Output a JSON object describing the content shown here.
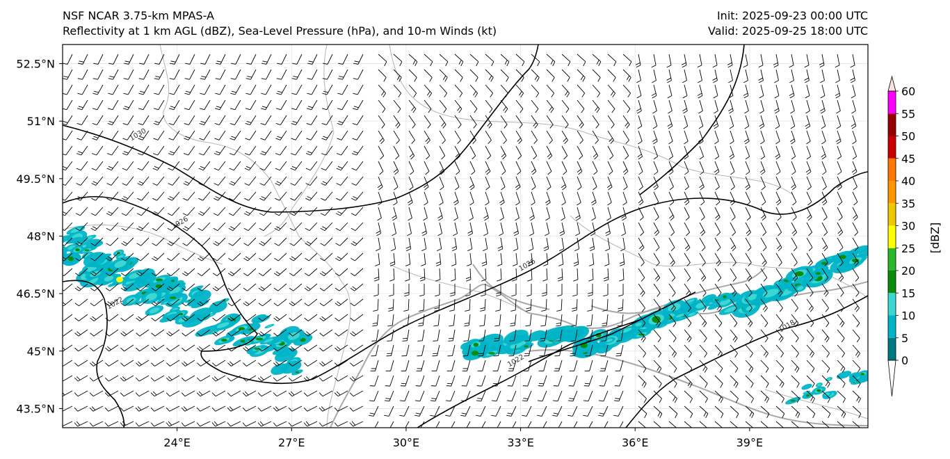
{
  "header": {
    "model": "NSF NCAR 3.75-km MPAS-A",
    "fields": "Reflectivity at 1 km AGL (dBZ), Sea-Level Pressure (hPa), and 10-m Winds (kt)",
    "init": "Init: 2025-09-23 00:00 UTC",
    "valid": "Valid: 2025-09-25 18:00 UTC"
  },
  "axes": {
    "lon_range": [
      21.0,
      42.1
    ],
    "lat_range": [
      43.0,
      53.0
    ],
    "lon_ticks": [
      {
        "value": 24,
        "label": "24°E"
      },
      {
        "value": 27,
        "label": "27°E"
      },
      {
        "value": 30,
        "label": "30°E"
      },
      {
        "value": 33,
        "label": "33°E"
      },
      {
        "value": 36,
        "label": "36°E"
      },
      {
        "value": 39,
        "label": "39°E"
      }
    ],
    "lat_ticks": [
      {
        "value": 52.5,
        "label": "52.5°N"
      },
      {
        "value": 51.0,
        "label": "51°N"
      },
      {
        "value": 49.5,
        "label": "49.5°N"
      },
      {
        "value": 48.0,
        "label": "48°N"
      },
      {
        "value": 46.5,
        "label": "46.5°N"
      },
      {
        "value": 45.0,
        "label": "45°N"
      },
      {
        "value": 43.5,
        "label": "43.5°N"
      }
    ]
  },
  "colorbar": {
    "label": "[dBZ]",
    "ticks": [
      "0",
      "5",
      "10",
      "15",
      "20",
      "25",
      "30",
      "35",
      "40",
      "45",
      "50",
      "55",
      "60"
    ],
    "colors": [
      "#00787f",
      "#00b4c8",
      "#3cd7d2",
      "#0a8c0a",
      "#2ab82a",
      "#ffff00",
      "#f0c800",
      "#ff9600",
      "#ff7800",
      "#c80000",
      "#960000",
      "#ff00ff",
      "#fce2dc"
    ]
  },
  "isobars": [
    {
      "label": "1030",
      "label_lon": 23.0,
      "label_lat": 50.6
    },
    {
      "label": "1026",
      "label_lon": 24.1,
      "label_lat": 48.3
    },
    {
      "label": "1026",
      "label_lon": 33.2,
      "label_lat": 47.2
    },
    {
      "label": "1022",
      "label_lon": 22.4,
      "label_lat": 46.2
    },
    {
      "label": "1022",
      "label_lon": 32.9,
      "label_lat": 44.7
    },
    {
      "label": "1018",
      "label_lon": 40.0,
      "label_lat": 45.6
    }
  ],
  "colors": {
    "isobar": "#000000",
    "coast": "#a8a8a8",
    "border": "#b4b4b4",
    "barb": "#000000",
    "grid": "#e6e6e6"
  }
}
